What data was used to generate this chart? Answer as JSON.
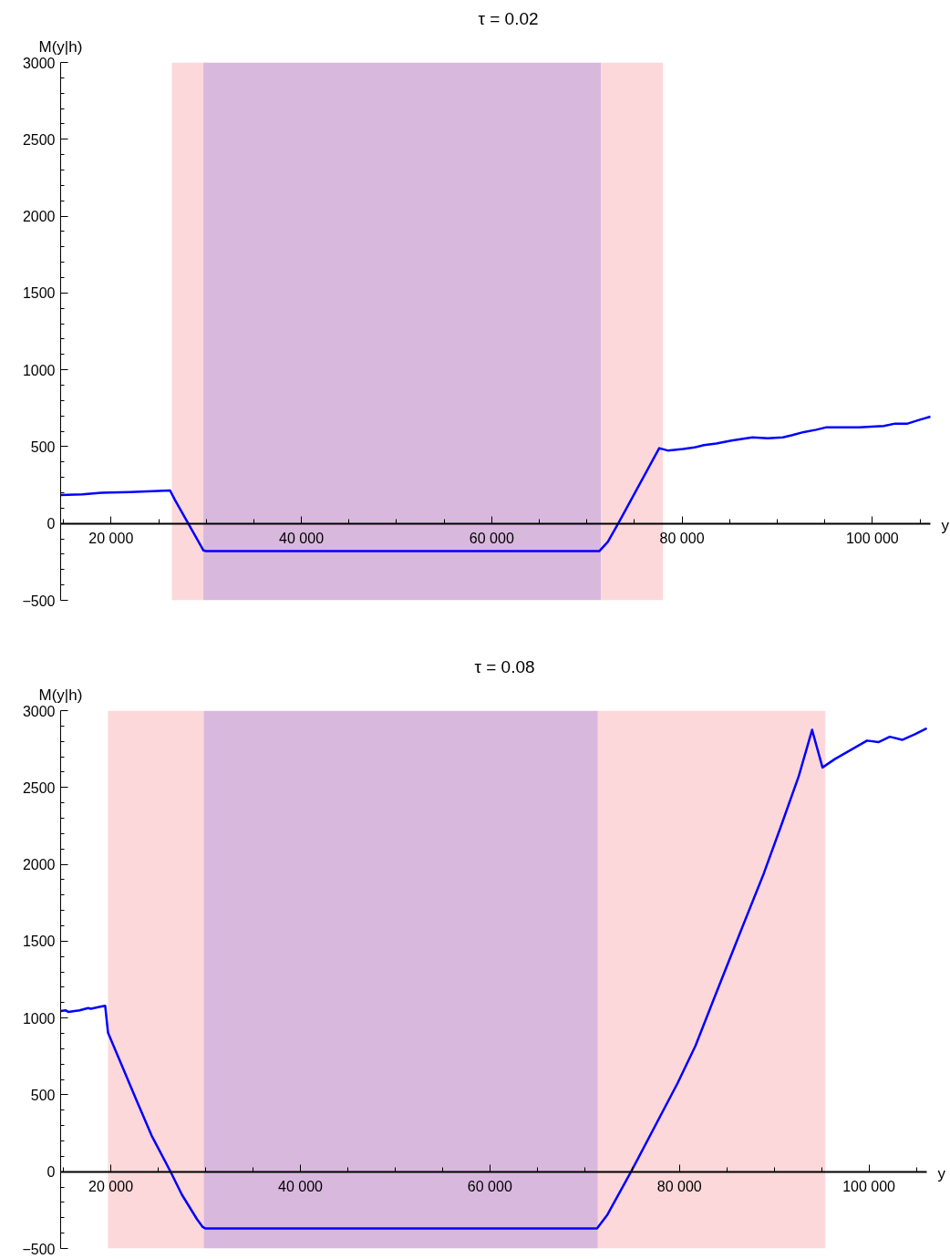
{
  "chart_data": [
    {
      "type": "line",
      "title": "τ = 0.02",
      "xlabel": "y",
      "ylabel": "M(y|h)",
      "xlim": [
        14700,
        106100
      ],
      "ylim": [
        -500,
        3000
      ],
      "xticks": [
        {
          "value": 15000,
          "label": null
        },
        {
          "value": 20000,
          "label": "20 000"
        },
        {
          "value": 25000,
          "label": null
        },
        {
          "value": 30000,
          "label": null
        },
        {
          "value": 35000,
          "label": null
        },
        {
          "value": 40000,
          "label": "40 000"
        },
        {
          "value": 45000,
          "label": null
        },
        {
          "value": 50000,
          "label": null
        },
        {
          "value": 55000,
          "label": null
        },
        {
          "value": 60000,
          "label": "60 000"
        },
        {
          "value": 65000,
          "label": null
        },
        {
          "value": 70000,
          "label": null
        },
        {
          "value": 75000,
          "label": null
        },
        {
          "value": 80000,
          "label": "80 000"
        },
        {
          "value": 85000,
          "label": null
        },
        {
          "value": 90000,
          "label": null
        },
        {
          "value": 95000,
          "label": null
        },
        {
          "value": 100000,
          "label": "100 000"
        },
        {
          "value": 105000,
          "label": null
        }
      ],
      "yticks": [
        {
          "value": -500,
          "label": "−500"
        },
        {
          "value": -400,
          "label": null
        },
        {
          "value": -300,
          "label": null
        },
        {
          "value": -200,
          "label": null
        },
        {
          "value": -100,
          "label": null
        },
        0,
        {
          "value": 100,
          "label": null
        },
        {
          "value": 200,
          "label": null
        },
        {
          "value": 300,
          "label": null
        },
        {
          "value": 400,
          "label": null
        },
        500,
        {
          "value": 600,
          "label": null
        },
        {
          "value": 700,
          "label": null
        },
        {
          "value": 800,
          "label": null
        },
        {
          "value": 900,
          "label": null
        },
        1000,
        {
          "value": 1100,
          "label": null
        },
        {
          "value": 1200,
          "label": null
        },
        {
          "value": 1300,
          "label": null
        },
        {
          "value": 1400,
          "label": null
        },
        1500,
        {
          "value": 1600,
          "label": null
        },
        {
          "value": 1700,
          "label": null
        },
        {
          "value": 1800,
          "label": null
        },
        {
          "value": 1900,
          "label": null
        },
        2000,
        {
          "value": 2100,
          "label": null
        },
        {
          "value": 2200,
          "label": null
        },
        {
          "value": 2300,
          "label": null
        },
        {
          "value": 2400,
          "label": null
        },
        2500,
        {
          "value": 2600,
          "label": null
        },
        {
          "value": 2700,
          "label": null
        },
        {
          "value": 2800,
          "label": null
        },
        {
          "value": 2900,
          "label": null
        },
        3000
      ],
      "bands": [
        {
          "axis": "x",
          "from": 26400,
          "to": 29700,
          "color": "#fdd8da"
        },
        {
          "axis": "x",
          "from": 29700,
          "to": 71500,
          "color": "#d9b8de"
        },
        {
          "axis": "x",
          "from": 71500,
          "to": 78000,
          "color": "#fdd8da"
        }
      ],
      "x": [
        14700,
        17000,
        19000,
        22000,
        26200,
        26700,
        29700,
        30000,
        71300,
        72200,
        73300,
        77600,
        78500,
        80100,
        81300,
        82300,
        83600,
        85200,
        87400,
        89000,
        90600,
        91600,
        92800,
        94100,
        95100,
        97000,
        98600,
        101200,
        102400,
        103700,
        105000,
        106100
      ],
      "series": [
        {
          "color": "#0000ff",
          "values": [
            185,
            190,
            200,
            205,
            215,
            155,
            -175,
            -180,
            -180,
            -120,
            0,
            490,
            475,
            485,
            495,
            510,
            520,
            540,
            560,
            555,
            560,
            575,
            595,
            610,
            625,
            625,
            625,
            635,
            650,
            650,
            675,
            695
          ]
        }
      ]
    },
    {
      "type": "line",
      "title": "τ = 0.08",
      "xlabel": "y",
      "ylabel": "M(y|h)",
      "xlim": [
        14700,
        106100
      ],
      "ylim": [
        -500,
        3000
      ],
      "xticks": [
        {
          "value": 15000,
          "label": null
        },
        {
          "value": 20000,
          "label": "20 000"
        },
        {
          "value": 25000,
          "label": null
        },
        {
          "value": 30000,
          "label": null
        },
        {
          "value": 35000,
          "label": null
        },
        {
          "value": 40000,
          "label": "40 000"
        },
        {
          "value": 45000,
          "label": null
        },
        {
          "value": 50000,
          "label": null
        },
        {
          "value": 55000,
          "label": null
        },
        {
          "value": 60000,
          "label": "60 000"
        },
        {
          "value": 65000,
          "label": null
        },
        {
          "value": 70000,
          "label": null
        },
        {
          "value": 75000,
          "label": null
        },
        {
          "value": 80000,
          "label": "80 000"
        },
        {
          "value": 85000,
          "label": null
        },
        {
          "value": 90000,
          "label": null
        },
        {
          "value": 95000,
          "label": null
        },
        {
          "value": 100000,
          "label": "100 000"
        },
        {
          "value": 105000,
          "label": null
        }
      ],
      "yticks": [
        {
          "value": -500,
          "label": "−500"
        },
        {
          "value": -400,
          "label": null
        },
        {
          "value": -300,
          "label": null
        },
        {
          "value": -200,
          "label": null
        },
        {
          "value": -100,
          "label": null
        },
        0,
        {
          "value": 100,
          "label": null
        },
        {
          "value": 200,
          "label": null
        },
        {
          "value": 300,
          "label": null
        },
        {
          "value": 400,
          "label": null
        },
        500,
        {
          "value": 600,
          "label": null
        },
        {
          "value": 700,
          "label": null
        },
        {
          "value": 800,
          "label": null
        },
        {
          "value": 900,
          "label": null
        },
        1000,
        {
          "value": 1100,
          "label": null
        },
        {
          "value": 1200,
          "label": null
        },
        {
          "value": 1300,
          "label": null
        },
        {
          "value": 1400,
          "label": null
        },
        1500,
        {
          "value": 1600,
          "label": null
        },
        {
          "value": 1700,
          "label": null
        },
        {
          "value": 1800,
          "label": null
        },
        {
          "value": 1900,
          "label": null
        },
        2000,
        {
          "value": 2100,
          "label": null
        },
        {
          "value": 2200,
          "label": null
        },
        {
          "value": 2300,
          "label": null
        },
        {
          "value": 2400,
          "label": null
        },
        2500,
        {
          "value": 2600,
          "label": null
        },
        {
          "value": 2700,
          "label": null
        },
        {
          "value": 2800,
          "label": null
        },
        {
          "value": 2900,
          "label": null
        },
        3000
      ],
      "bands": [
        {
          "axis": "x",
          "from": 19700,
          "to": 29800,
          "color": "#fdd8da"
        },
        {
          "axis": "x",
          "from": 29800,
          "to": 71400,
          "color": "#d9b8de"
        },
        {
          "axis": "x",
          "from": 71400,
          "to": 95400,
          "color": "#fdd8da"
        }
      ],
      "x": [
        14700,
        15200,
        15500,
        16700,
        17600,
        17900,
        19000,
        19400,
        19700,
        21100,
        22700,
        24300,
        26300,
        27500,
        29100,
        29700,
        30000,
        71300,
        72400,
        74900,
        79800,
        81700,
        83900,
        86600,
        88900,
        90700,
        92600,
        94000,
        95100,
        96400,
        99800,
        101000,
        102200,
        103500,
        104800,
        106100
      ],
      "series": [
        {
          "color": "#0000ff",
          "values": [
            1045,
            1050,
            1040,
            1050,
            1065,
            1060,
            1075,
            1080,
            905,
            700,
            465,
            235,
            0,
            -150,
            -310,
            -360,
            -370,
            -370,
            -280,
            0,
            575,
            820,
            1165,
            1585,
            1940,
            2245,
            2575,
            2875,
            2630,
            2685,
            2805,
            2795,
            2830,
            2810,
            2845,
            2885
          ]
        }
      ]
    }
  ]
}
